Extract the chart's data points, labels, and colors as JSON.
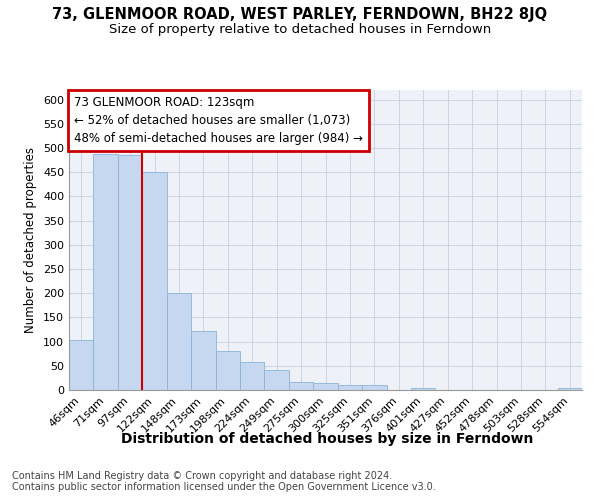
{
  "title": "73, GLENMOOR ROAD, WEST PARLEY, FERNDOWN, BH22 8JQ",
  "subtitle": "Size of property relative to detached houses in Ferndown",
  "xlabel": "Distribution of detached houses by size in Ferndown",
  "ylabel": "Number of detached properties",
  "bar_color": "#c5d8f0",
  "bar_edge_color": "#8ab4d8",
  "grid_color": "#c8d0dc",
  "bg_color": "#eef2f8",
  "categories": [
    "46sqm",
    "71sqm",
    "97sqm",
    "122sqm",
    "148sqm",
    "173sqm",
    "198sqm",
    "224sqm",
    "249sqm",
    "275sqm",
    "300sqm",
    "325sqm",
    "351sqm",
    "376sqm",
    "401sqm",
    "427sqm",
    "452sqm",
    "478sqm",
    "503sqm",
    "528sqm",
    "554sqm"
  ],
  "values": [
    104,
    487,
    485,
    451,
    200,
    122,
    80,
    57,
    42,
    17,
    15,
    10,
    10,
    1,
    5,
    1,
    0,
    0,
    0,
    0,
    5
  ],
  "vline_color": "#cc0000",
  "annotation_text": "73 GLENMOOR ROAD: 123sqm\n← 52% of detached houses are smaller (1,073)\n48% of semi-detached houses are larger (984) →",
  "annotation_box_color": "#cc0000",
  "ylim": [
    0,
    620
  ],
  "yticks": [
    0,
    50,
    100,
    150,
    200,
    250,
    300,
    350,
    400,
    450,
    500,
    550,
    600
  ],
  "footer_text": "Contains HM Land Registry data © Crown copyright and database right 2024.\nContains public sector information licensed under the Open Government Licence v3.0.",
  "title_fontsize": 10.5,
  "subtitle_fontsize": 9.5,
  "xlabel_fontsize": 10,
  "ylabel_fontsize": 8.5,
  "tick_fontsize": 8,
  "footer_fontsize": 7,
  "annotation_fontsize": 8.5
}
